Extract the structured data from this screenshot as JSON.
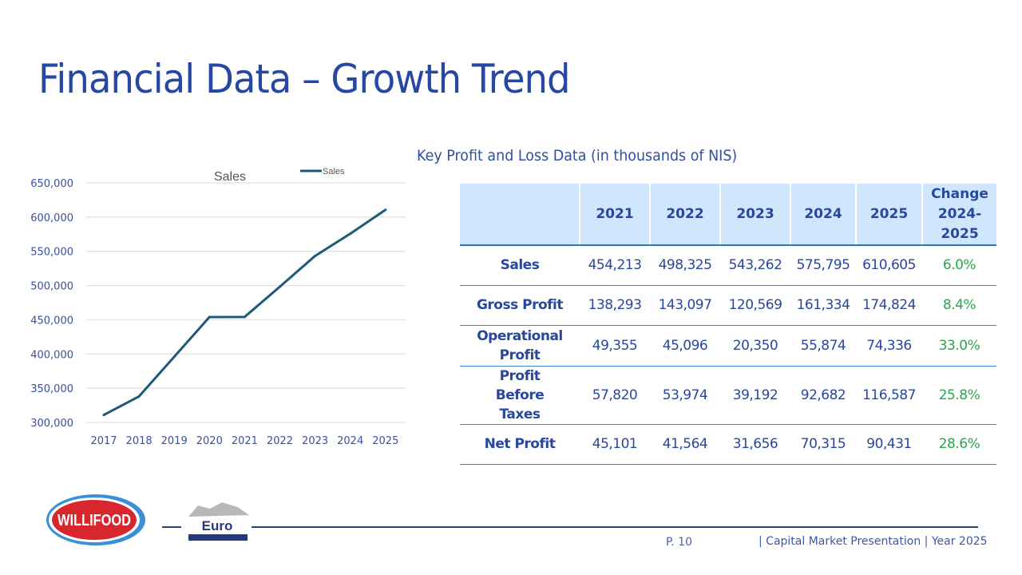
{
  "title": "Financial Data – Growth Trend",
  "table_title": "Key Profit and Loss Data (in thousands of NIS)",
  "table": {
    "headers": [
      "",
      "2021",
      "2022",
      "2023",
      "2024",
      "2025",
      "Change 2024-2025"
    ],
    "header_change_lines": [
      "Change",
      "2024-",
      "2025"
    ],
    "rows": [
      {
        "label": "Sales",
        "values": [
          "454,213",
          "498,325",
          "543,262",
          "575,795",
          "610,605"
        ],
        "change": "6.0%"
      },
      {
        "label": "Gross Profit",
        "values": [
          "138,293",
          "143,097",
          "120,569",
          "161,334",
          "174,824"
        ],
        "change": "8.4%"
      },
      {
        "label": "Operational Profit",
        "values": [
          "49,355",
          "45,096",
          "20,350",
          "55,874",
          "74,336"
        ],
        "change": "33.0%"
      },
      {
        "label": "Profit Before Taxes",
        "values": [
          "57,820",
          "53,974",
          "39,192",
          "92,682",
          "116,587"
        ],
        "change": "25.8%"
      },
      {
        "label": "Net Profit",
        "values": [
          "45,101",
          "41,564",
          "31,656",
          "70,315",
          "90,431"
        ],
        "change": "28.6%"
      }
    ]
  },
  "chart_data": {
    "type": "line",
    "title": "Sales",
    "x": [
      "2017",
      "2018",
      "2019",
      "2020",
      "2021",
      "2022",
      "2023",
      "2024",
      "2025"
    ],
    "series": [
      {
        "name": "Sales",
        "color": "#1c5a7a",
        "values": [
          311000,
          338000,
          396000,
          454000,
          454213,
          498325,
          543262,
          575795,
          610605
        ]
      }
    ],
    "ylim": [
      300000,
      650000
    ],
    "yticks": [
      300000,
      350000,
      400000,
      450000,
      500000,
      550000,
      600000,
      650000
    ],
    "ytick_labels": [
      "300,000",
      "350,000",
      "400,000",
      "450,000",
      "500,000",
      "550,000",
      "600,000",
      "650,000"
    ],
    "grid": true,
    "legend": "top-right"
  },
  "footer": {
    "page": "P. 10",
    "presentation": "| Capital Market Presentation | Year 2025"
  },
  "logos": {
    "willifood": "WILLIFOOD",
    "euro": "Euro"
  }
}
